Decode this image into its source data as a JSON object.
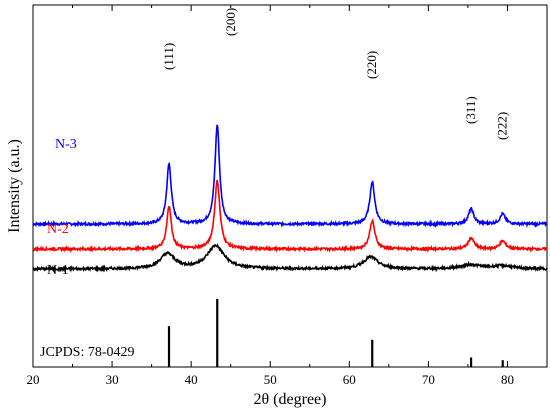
{
  "chart_data": {
    "type": "line",
    "xlabel": "2θ (degree)",
    "ylabel": "Intensity (a.u.)",
    "xlim": [
      20,
      85
    ],
    "x_ticks": [
      20,
      30,
      40,
      50,
      60,
      70,
      80
    ],
    "y_ticks_shown": false,
    "grid": false,
    "series": [
      {
        "name": "N-3",
        "color": "#0000ff",
        "baseline": 0.36,
        "noise": 0.012,
        "peaks": [
          {
            "x": 37.2,
            "height": 0.6,
            "width": 0.35
          },
          {
            "x": 43.3,
            "height": 0.99,
            "width": 0.35
          },
          {
            "x": 62.9,
            "height": 0.42,
            "width": 0.38
          },
          {
            "x": 75.4,
            "height": 0.15,
            "width": 0.4
          },
          {
            "x": 79.4,
            "height": 0.1,
            "width": 0.4
          }
        ]
      },
      {
        "name": "N-2",
        "color": "#ff0000",
        "baseline": 0.11,
        "noise": 0.012,
        "peaks": [
          {
            "x": 37.2,
            "height": 0.43,
            "width": 0.35
          },
          {
            "x": 43.3,
            "height": 0.68,
            "width": 0.4
          },
          {
            "x": 62.9,
            "height": 0.28,
            "width": 0.4
          },
          {
            "x": 75.4,
            "height": 0.11,
            "width": 0.45
          },
          {
            "x": 79.4,
            "height": 0.08,
            "width": 0.45
          }
        ]
      },
      {
        "name": "N-1",
        "color": "#000000",
        "baseline": -0.09,
        "noise": 0.012,
        "peaks": [
          {
            "x": 37.0,
            "height": 0.15,
            "width": 1.1
          },
          {
            "x": 43.1,
            "height": 0.23,
            "width": 1.3
          },
          {
            "x": 62.7,
            "height": 0.12,
            "width": 1.1
          },
          {
            "x": 75.4,
            "height": 0.04,
            "width": 1.5
          },
          {
            "x": 79.4,
            "height": 0.03,
            "width": 1.5
          }
        ]
      }
    ],
    "reference": {
      "label": "JCPDS: 78-0429",
      "lines": [
        {
          "x": 37.2,
          "intensity": 0.6
        },
        {
          "x": 43.3,
          "intensity": 1.0
        },
        {
          "x": 62.9,
          "intensity": 0.4
        },
        {
          "x": 75.4,
          "intensity": 0.14
        },
        {
          "x": 79.4,
          "intensity": 0.1
        }
      ]
    },
    "peak_labels": [
      {
        "text": "(111)",
        "x": 37.2
      },
      {
        "text": "(200)",
        "x": 43.3
      },
      {
        "text": "(220)",
        "x": 62.9
      },
      {
        "text": "(311)",
        "x": 75.4
      },
      {
        "text": "(222)",
        "x": 79.4
      }
    ]
  }
}
